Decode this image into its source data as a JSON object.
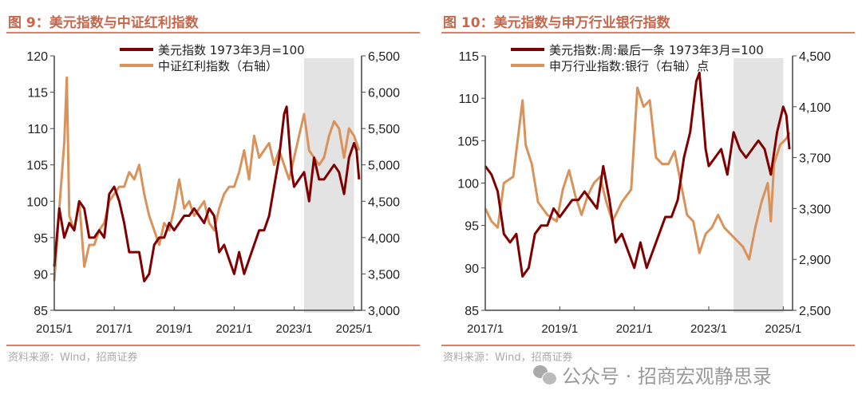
{
  "chart_data": [
    {
      "type": "line",
      "title": "图 9：美元指数与中证红利指数",
      "source": "资料来源：Wind，招商证券",
      "x_ticks": [
        "2015/1",
        "2017/1",
        "2019/1",
        "2021/1",
        "2023/1",
        "2025/1"
      ],
      "xlim": [
        "2015/1",
        "2025/4"
      ],
      "y_left": {
        "lim": [
          85,
          120
        ],
        "ticks": [
          "85",
          "90",
          "95",
          "100",
          "105",
          "110",
          "115",
          "120"
        ]
      },
      "y_right": {
        "lim": [
          3000,
          6500
        ],
        "ticks": [
          "3,000",
          "3,500",
          "4,000",
          "4,500",
          "5,000",
          "5,500",
          "6,000",
          "6,500"
        ]
      },
      "shaded_range": [
        "2023/5",
        "2025/1"
      ],
      "legend_placement": "top-center",
      "series": [
        {
          "name": "美元指数 1973年3月=100",
          "axis": "left",
          "color": "#7f0000",
          "x": [
            "2015/1",
            "2015/3",
            "2015/5",
            "2015/7",
            "2015/9",
            "2015/11",
            "2016/1",
            "2016/3",
            "2016/5",
            "2016/7",
            "2016/9",
            "2016/11",
            "2017/1",
            "2017/3",
            "2017/5",
            "2017/7",
            "2017/9",
            "2017/11",
            "2018/1",
            "2018/3",
            "2018/5",
            "2018/7",
            "2018/9",
            "2018/11",
            "2019/1",
            "2019/3",
            "2019/5",
            "2019/7",
            "2019/9",
            "2019/11",
            "2020/1",
            "2020/3",
            "2020/5",
            "2020/7",
            "2020/9",
            "2020/11",
            "2021/1",
            "2021/3",
            "2021/5",
            "2021/7",
            "2021/9",
            "2021/11",
            "2022/1",
            "2022/3",
            "2022/5",
            "2022/7",
            "2022/9",
            "2022/10",
            "2022/12",
            "2023/1",
            "2023/3",
            "2023/5",
            "2023/7",
            "2023/9",
            "2023/11",
            "2024/1",
            "2024/3",
            "2024/5",
            "2024/7",
            "2024/9",
            "2024/11",
            "2025/1",
            "2025/2",
            "2025/3"
          ],
          "y": [
            91,
            99,
            95,
            97,
            96,
            100,
            99,
            95,
            95,
            96,
            95,
            101,
            102,
            100,
            97,
            93,
            93,
            93,
            89,
            90,
            94,
            95,
            95,
            97,
            96,
            97,
            98,
            98,
            99,
            98,
            97,
            99,
            98,
            93,
            94,
            92,
            90,
            93,
            90,
            92,
            94,
            96,
            96,
            98,
            102,
            106,
            112,
            113,
            104,
            102,
            103,
            104,
            100,
            106,
            103,
            103,
            104,
            105,
            104,
            101,
            106,
            108,
            107,
            103
          ]
        },
        {
          "name": "中证红利指数（右轴）",
          "axis": "right",
          "color": "#d9935a",
          "x": [
            "2015/1",
            "2015/3",
            "2015/5",
            "2015/6",
            "2015/7",
            "2015/9",
            "2015/11",
            "2016/1",
            "2016/3",
            "2016/5",
            "2016/7",
            "2016/9",
            "2016/11",
            "2017/1",
            "2017/3",
            "2017/5",
            "2017/7",
            "2017/9",
            "2017/11",
            "2018/1",
            "2018/3",
            "2018/5",
            "2018/7",
            "2018/9",
            "2018/11",
            "2019/1",
            "2019/3",
            "2019/5",
            "2019/7",
            "2019/9",
            "2019/11",
            "2020/1",
            "2020/3",
            "2020/5",
            "2020/7",
            "2020/9",
            "2020/11",
            "2021/1",
            "2021/3",
            "2021/5",
            "2021/7",
            "2021/9",
            "2021/11",
            "2022/1",
            "2022/3",
            "2022/5",
            "2022/7",
            "2022/9",
            "2022/11",
            "2023/1",
            "2023/3",
            "2023/5",
            "2023/7",
            "2023/9",
            "2023/11",
            "2024/1",
            "2024/3",
            "2024/5",
            "2024/7",
            "2024/9",
            "2024/11",
            "2025/1",
            "2025/3"
          ],
          "y": [
            3400,
            4400,
            5300,
            6200,
            4300,
            4100,
            4500,
            3600,
            3900,
            3900,
            4100,
            4200,
            4500,
            4600,
            4700,
            4700,
            4900,
            4800,
            5000,
            4600,
            4300,
            4100,
            3900,
            4200,
            4100,
            4400,
            4800,
            4400,
            4500,
            4300,
            4400,
            4500,
            4200,
            4100,
            4400,
            4600,
            4700,
            4700,
            4900,
            5200,
            4800,
            5400,
            5100,
            5200,
            5300,
            5000,
            5200,
            5000,
            4800,
            5100,
            5400,
            5700,
            5200,
            5100,
            5000,
            5100,
            5400,
            5600,
            5500,
            5100,
            5500,
            5400,
            5200
          ]
        }
      ]
    },
    {
      "type": "line",
      "title": "图 10：美元指数与申万行业银行指数",
      "source": "资料来源：Wind，招商证券",
      "x_ticks": [
        "2017/1",
        "2019/1",
        "2021/1",
        "2023/1",
        "2025/1"
      ],
      "xlim": [
        "2017/1",
        "2025/4"
      ],
      "y_left": {
        "lim": [
          85,
          115
        ],
        "ticks": [
          "85",
          "90",
          "95",
          "100",
          "105",
          "110",
          "115"
        ]
      },
      "y_right": {
        "lim": [
          2500,
          4500
        ],
        "ticks": [
          "2,500",
          "2,900",
          "3,300",
          "3,700",
          "4,100",
          "4,500"
        ]
      },
      "shaded_range": [
        "2023/9",
        "2025/1"
      ],
      "legend_placement": "top-center",
      "series": [
        {
          "name": "美元指数:周:最后一条 1973年3月=100",
          "axis": "left",
          "color": "#7f0000",
          "x": [
            "2017/1",
            "2017/3",
            "2017/5",
            "2017/7",
            "2017/9",
            "2017/11",
            "2018/1",
            "2018/3",
            "2018/5",
            "2018/7",
            "2018/9",
            "2018/11",
            "2019/1",
            "2019/3",
            "2019/5",
            "2019/7",
            "2019/9",
            "2019/11",
            "2020/1",
            "2020/3",
            "2020/5",
            "2020/7",
            "2020/9",
            "2020/11",
            "2021/1",
            "2021/3",
            "2021/5",
            "2021/7",
            "2021/9",
            "2021/11",
            "2022/1",
            "2022/3",
            "2022/5",
            "2022/7",
            "2022/9",
            "2022/10",
            "2022/12",
            "2023/1",
            "2023/3",
            "2023/5",
            "2023/7",
            "2023/9",
            "2023/11",
            "2024/1",
            "2024/3",
            "2024/5",
            "2024/7",
            "2024/9",
            "2024/11",
            "2025/1",
            "2025/2",
            "2025/3"
          ],
          "y": [
            102,
            101,
            99,
            94,
            93,
            94,
            89,
            90,
            94,
            95,
            95,
            97,
            96,
            97,
            98,
            98,
            99,
            98,
            97,
            102,
            98,
            93,
            94,
            92,
            90,
            93,
            90,
            92,
            94,
            96,
            96,
            98,
            103,
            106,
            112,
            113,
            104,
            102,
            103,
            104,
            101,
            106,
            104,
            103,
            104,
            105,
            104,
            101,
            106,
            109,
            108,
            104
          ]
        },
        {
          "name": "申万行业指数:银行（右轴）点",
          "axis": "right",
          "color": "#d9935a",
          "x": [
            "2017/1",
            "2017/3",
            "2017/5",
            "2017/7",
            "2017/10",
            "2018/1",
            "2018/2",
            "2018/4",
            "2018/6",
            "2018/9",
            "2018/12",
            "2019/2",
            "2019/4",
            "2019/6",
            "2019/8",
            "2019/10",
            "2019/12",
            "2020/2",
            "2020/4",
            "2020/6",
            "2020/9",
            "2020/12",
            "2021/2",
            "2021/4",
            "2021/6",
            "2021/8",
            "2021/10",
            "2021/12",
            "2022/2",
            "2022/4",
            "2022/6",
            "2022/8",
            "2022/10",
            "2022/12",
            "2023/2",
            "2023/4",
            "2023/6",
            "2023/8",
            "2023/10",
            "2023/12",
            "2024/2",
            "2024/4",
            "2024/6",
            "2024/8",
            "2024/9",
            "2024/10",
            "2024/12",
            "2025/2",
            "2025/3"
          ],
          "y": [
            3300,
            3200,
            3150,
            3500,
            3550,
            4150,
            3800,
            3650,
            3350,
            3250,
            3200,
            3450,
            3600,
            3400,
            3250,
            3400,
            3500,
            3550,
            3350,
            3200,
            3350,
            3450,
            4250,
            4100,
            4150,
            3700,
            3650,
            3650,
            3750,
            3500,
            3250,
            3200,
            2950,
            3100,
            3150,
            3250,
            3150,
            3100,
            3050,
            3000,
            2900,
            3150,
            3350,
            3500,
            3200,
            3650,
            3800,
            3850,
            3900
          ]
        }
      ]
    }
  ],
  "watermark": {
    "icon": "wechat-icon",
    "text": "公众号 · 招商宏观静思录"
  }
}
